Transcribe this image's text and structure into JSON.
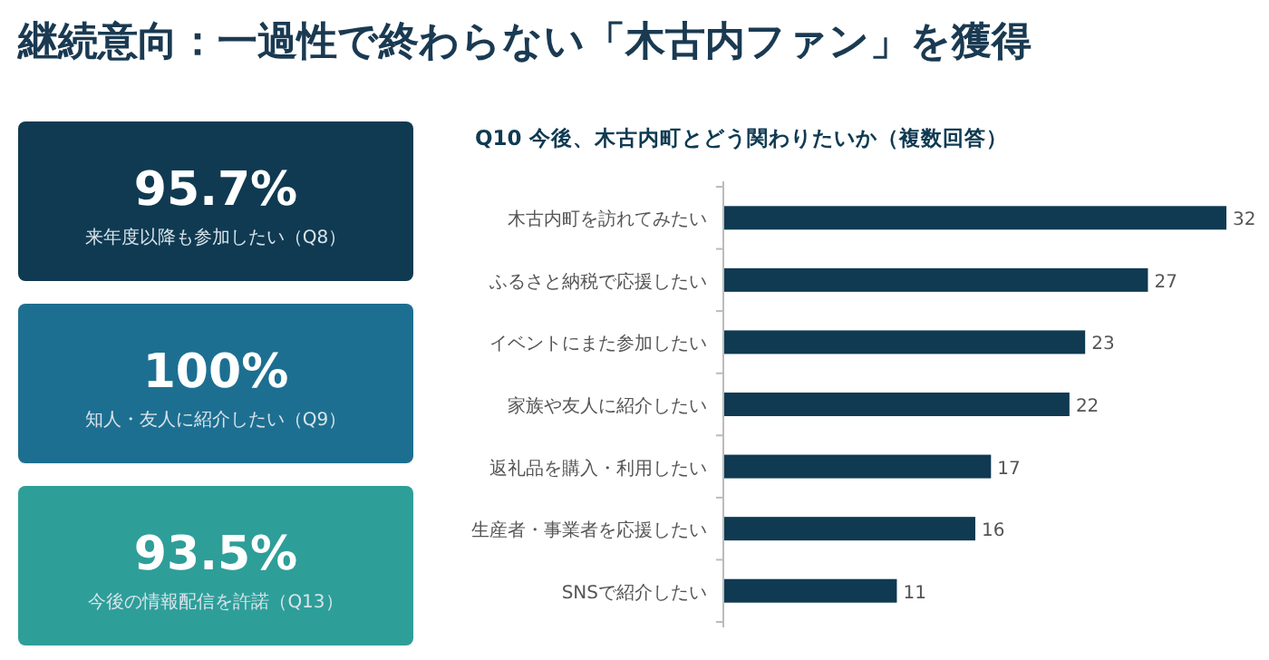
{
  "chart_data": [
    {
      "type": "other",
      "title": "継続意向：一過性で終わらない「木古内ファン」を獲得",
      "annotations": [
        "95.7%",
        "来年度以降も参加したい（Q8）",
        "100%",
        "知人・友人に紹介したい（Q9）",
        "93.5%",
        "今後の情報配信を許諾（Q13）"
      ]
    },
    {
      "type": "bar",
      "orientation": "horizontal",
      "title": "Q10 今後、木古内町とどう関わりたいか（複数回答）",
      "categories": [
        "木古内町を訪れてみたい",
        "ふるさと納税で応援したい",
        "イベントにまた参加したい",
        "家族や友人に紹介したい",
        "返礼品を購入・利用したい",
        "生産者・事業者を応援したい",
        "SNSで紹介したい"
      ],
      "values": [
        32,
        27,
        23,
        22,
        17,
        16,
        11
      ],
      "color": "#0f3a52",
      "data_labels": true
    }
  ]
}
